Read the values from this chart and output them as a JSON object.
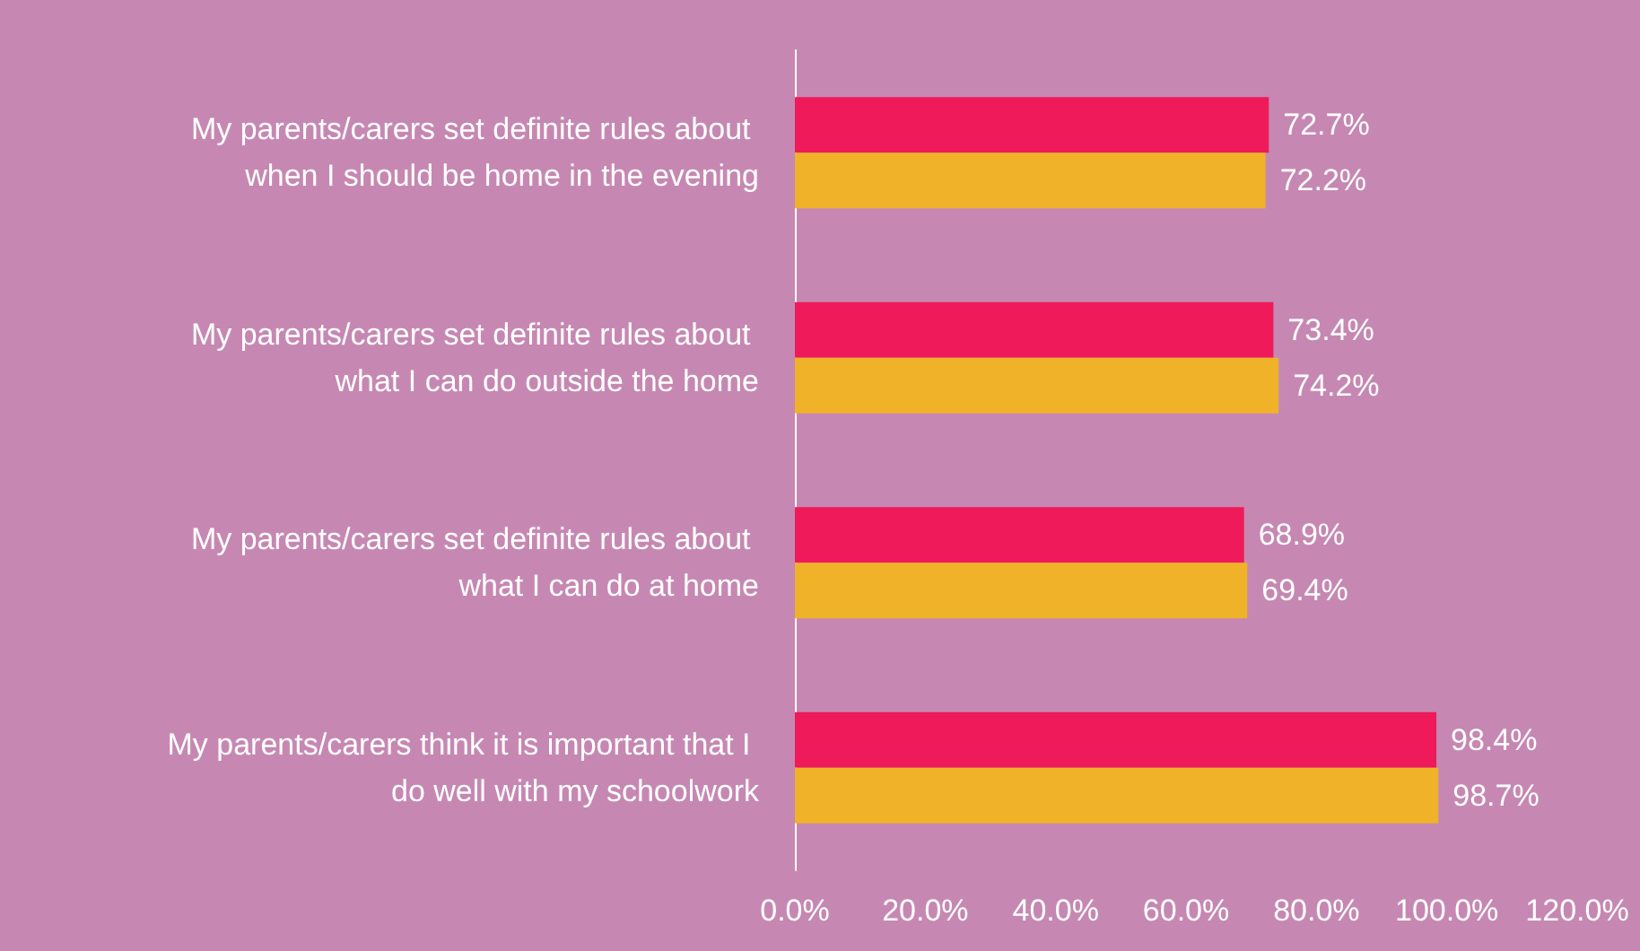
{
  "chart_data": {
    "type": "bar",
    "orientation": "horizontal",
    "categories": [
      "My parents/carers set definite rules about when I should be home in the evening",
      "My parents/carers set definite rules about what I can do outside the home",
      "My parents/carers set definite rules about what I can do at home",
      "My parents/carers think it is important that I do well with my schoolwork"
    ],
    "series": [
      {
        "color": "#ee1a5a",
        "values": [
          72.7,
          73.4,
          68.9,
          98.4
        ],
        "value_labels": [
          "72.7%",
          "73.4%",
          "68.9%",
          "98.4%"
        ]
      },
      {
        "color": "#f0b229",
        "values": [
          72.2,
          74.2,
          69.4,
          98.7
        ],
        "value_labels": [
          "72.2%",
          "74.2%",
          "69.4%",
          "98.7%"
        ]
      }
    ],
    "xlim": [
      0,
      120
    ],
    "xticks": [
      {
        "value": 0,
        "label": "0.0%"
      },
      {
        "value": 20,
        "label": "20.0%"
      },
      {
        "value": 40,
        "label": "40.0%"
      },
      {
        "value": 60,
        "label": "60.0%"
      },
      {
        "value": 80,
        "label": "80.0%"
      },
      {
        "value": 100,
        "label": "100.0%"
      },
      {
        "value": 120,
        "label": "120.0%"
      }
    ],
    "grid": false
  }
}
